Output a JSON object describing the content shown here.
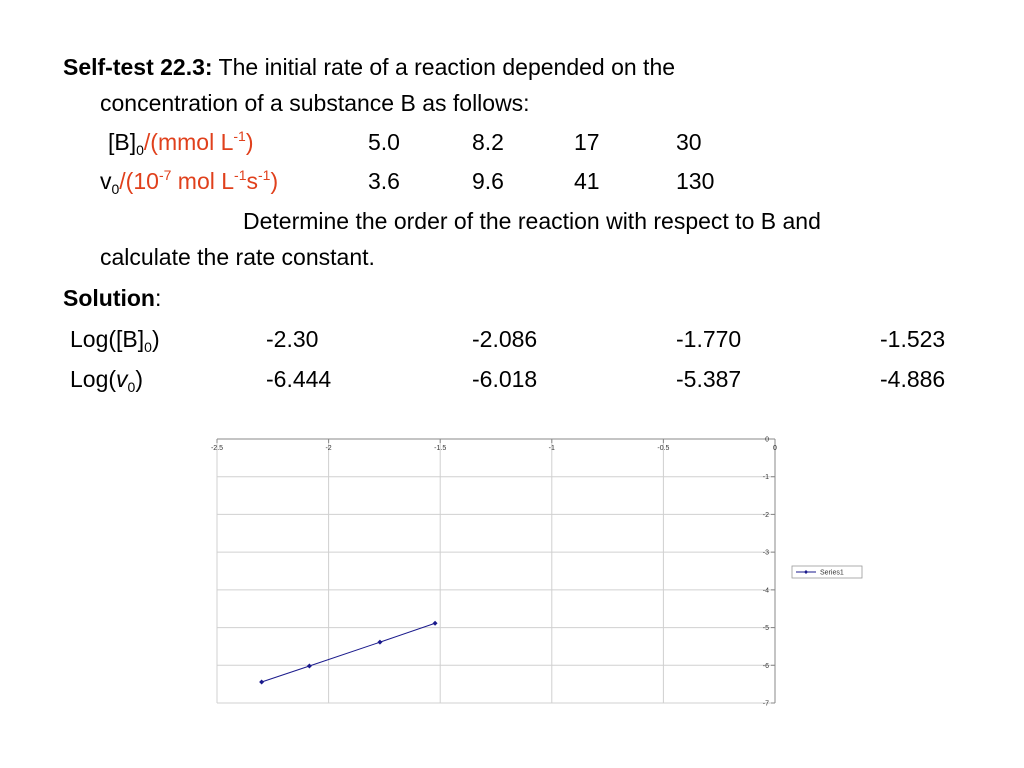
{
  "problem": {
    "heading": "Self-test 22.3:",
    "intro_line1": "The initial rate of a reaction depended on the",
    "intro_line2": "concentration of a substance B as follows:",
    "row_b": {
      "label_main": "[B]",
      "label_sub": "0",
      "unit_pre": "/(mmol L",
      "unit_sup": "-1",
      "unit_post": ")",
      "values": [
        "5.0",
        "8.2",
        "17",
        "30"
      ]
    },
    "row_v": {
      "label_main": "v",
      "label_sub": "0",
      "unit_pre": "/(10",
      "unit_sup1": "-7",
      "unit_mid": " mol L",
      "unit_sup2": "-1",
      "unit_s": "s",
      "unit_sup3": "-1",
      "unit_post": ")",
      "values": [
        "3.6",
        "9.6",
        "41",
        "130"
      ]
    },
    "task_line1": "Determine the order of the reaction with respect to B and",
    "task_line2": "calculate the rate constant."
  },
  "solution": {
    "heading": "Solution",
    "colon": ":",
    "log_b": {
      "label_pre": "Log([B]",
      "label_sub": "0",
      "label_post": ")",
      "values": [
        "-2.30",
        "-2.086",
        "-1.770",
        "-1.523"
      ]
    },
    "log_v": {
      "label_pre": "Log(",
      "label_italic": "v",
      "label_sub": "0",
      "label_post": ")",
      "values": [
        "-6.444",
        "-6.018",
        "-5.387",
        "-4.886"
      ]
    }
  },
  "chart_data": {
    "type": "line",
    "title": "",
    "xlabel": "",
    "ylabel": "",
    "xlim": [
      -2.5,
      0
    ],
    "ylim": [
      -7,
      0
    ],
    "x_ticks": [
      "-2.5",
      "-2",
      "-1.5",
      "-1",
      "-0.5",
      "0"
    ],
    "y_ticks": [
      "0",
      "-1",
      "-2",
      "-3",
      "-4",
      "-5",
      "-6",
      "-7"
    ],
    "grid": true,
    "legend_position": "right",
    "series": [
      {
        "name": "Series1",
        "color": "#1a1a8c",
        "x": [
          -2.3,
          -2.086,
          -1.77,
          -1.523
        ],
        "y": [
          -6.444,
          -6.018,
          -5.387,
          -4.886
        ]
      }
    ]
  }
}
